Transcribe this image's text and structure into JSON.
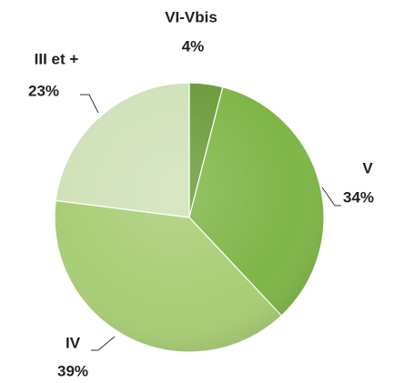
{
  "chart_data": {
    "type": "pie",
    "categories": [
      "VI-Vbis",
      "V",
      "IV",
      "III et +"
    ],
    "values": [
      4,
      34,
      39,
      23
    ],
    "value_labels": [
      "4%",
      "34%",
      "39%",
      "23%"
    ],
    "colors": [
      "#6b9b3c",
      "#7fb547",
      "#a8cd74",
      "#d0e1b8"
    ]
  }
}
